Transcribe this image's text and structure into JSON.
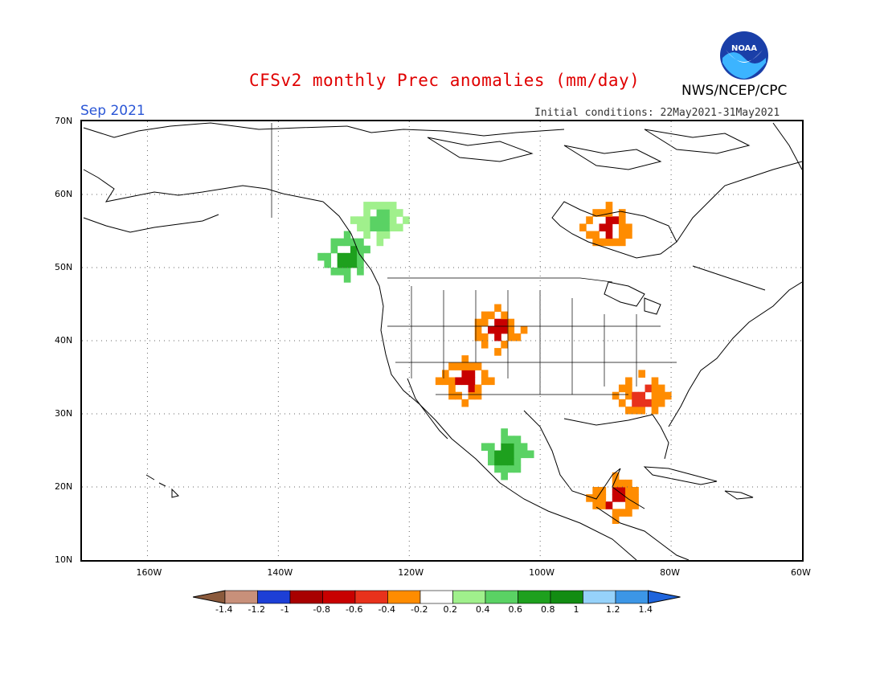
{
  "header": {
    "title": "CFSv2 monthly Prec anomalies (mm/day)",
    "month": "Sep 2021",
    "initial_conditions": "Initial conditions: 22May2021-31May2021",
    "agency": "NWS/NCEP/CPC",
    "logo_text": "NOAA"
  },
  "axes": {
    "lat_labels": [
      "70N",
      "60N",
      "50N",
      "40N",
      "30N",
      "20N",
      "10N"
    ],
    "lon_labels": [
      "160W",
      "140W",
      "120W",
      "100W",
      "80W",
      "60W"
    ],
    "lat_range": [
      10,
      70
    ],
    "lon_range": [
      -170,
      -60
    ]
  },
  "colorbar": {
    "labels": [
      "-1.4",
      "-1.2",
      "-1",
      "-0.8",
      "-0.6",
      "-0.4",
      "-0.2",
      "0.2",
      "0.4",
      "0.6",
      "0.8",
      "1",
      "1.2",
      "1.4"
    ],
    "colors": [
      "#8b5a3c",
      "#c8907a",
      "#1d3fd6",
      "#a80000",
      "#c80000",
      "#e8321c",
      "#ff8c00",
      "#ffffff",
      "#a0f08c",
      "#5ad264",
      "#1ea01e",
      "#128c12",
      "#96d2fa",
      "#3c96e6",
      "#1e64dc"
    ]
  },
  "anomaly_regions": [
    {
      "name": "Pacific Northwest coast",
      "lat": 52,
      "lon": -130,
      "value": 0.8
    },
    {
      "name": "Northwest Canada",
      "lat": 57,
      "lon": -125,
      "value": 0.5
    },
    {
      "name": "Central Rockies",
      "lat": 42,
      "lon": -107,
      "value": -0.6
    },
    {
      "name": "Southwest US",
      "lat": 35,
      "lon": -112,
      "value": -0.6
    },
    {
      "name": "Hudson Bay",
      "lat": 56,
      "lon": -90,
      "value": -0.6
    },
    {
      "name": "Southeast US",
      "lat": 33,
      "lon": -85,
      "value": -0.4
    },
    {
      "name": "Western Mexico",
      "lat": 25,
      "lon": -106,
      "value": 0.8
    },
    {
      "name": "Yucatan",
      "lat": 19,
      "lon": -89,
      "value": -0.6
    }
  ]
}
